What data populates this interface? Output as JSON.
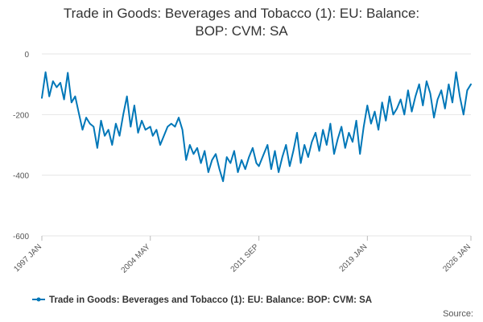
{
  "chart_data": {
    "type": "line",
    "title_line1": "Trade in Goods: Beverages and Tobacco (1): EU: Balance:",
    "title_line2": "BOP: CVM: SA",
    "xlabel": "",
    "ylabel": "",
    "ylim": [
      -600,
      0
    ],
    "y_ticks": [
      0,
      -200,
      -400,
      -600
    ],
    "y_tick_labels": [
      "0",
      "-200",
      "-400",
      "-600"
    ],
    "x_ticks": [
      {
        "label": "1997 JAN",
        "value": 1997.0
      },
      {
        "label": "2004 MAY",
        "value": 2004.33
      },
      {
        "label": "2011 SEP",
        "value": 2011.67
      },
      {
        "label": "2019 JAN",
        "value": 2019.0
      },
      {
        "label": "2026 JAN",
        "value": 2026.0
      }
    ],
    "xlim": [
      1997.0,
      2026.0
    ],
    "series": [
      {
        "name": "Trade in Goods: Beverages and Tobacco (1): EU: Balance: BOP: CVM: SA",
        "color": "#0077b8",
        "points": [
          [
            1997.0,
            -145
          ],
          [
            1997.25,
            -60
          ],
          [
            1997.5,
            -140
          ],
          [
            1997.75,
            -90
          ],
          [
            1998.0,
            -110
          ],
          [
            1998.25,
            -95
          ],
          [
            1998.5,
            -150
          ],
          [
            1998.75,
            -62
          ],
          [
            1999.0,
            -160
          ],
          [
            1999.25,
            -140
          ],
          [
            1999.5,
            -195
          ],
          [
            1999.75,
            -250
          ],
          [
            2000.0,
            -210
          ],
          [
            2000.25,
            -230
          ],
          [
            2000.5,
            -240
          ],
          [
            2000.75,
            -310
          ],
          [
            2001.0,
            -220
          ],
          [
            2001.25,
            -270
          ],
          [
            2001.5,
            -250
          ],
          [
            2001.75,
            -300
          ],
          [
            2002.0,
            -230
          ],
          [
            2002.25,
            -270
          ],
          [
            2002.5,
            -200
          ],
          [
            2002.75,
            -140
          ],
          [
            2003.0,
            -240
          ],
          [
            2003.25,
            -170
          ],
          [
            2003.5,
            -260
          ],
          [
            2003.75,
            -220
          ],
          [
            2004.0,
            -250
          ],
          [
            2004.33,
            -240
          ],
          [
            2004.5,
            -270
          ],
          [
            2004.75,
            -250
          ],
          [
            2005.0,
            -300
          ],
          [
            2005.25,
            -270
          ],
          [
            2005.5,
            -240
          ],
          [
            2005.75,
            -230
          ],
          [
            2006.0,
            -240
          ],
          [
            2006.25,
            -210
          ],
          [
            2006.5,
            -250
          ],
          [
            2006.75,
            -350
          ],
          [
            2007.0,
            -300
          ],
          [
            2007.25,
            -330
          ],
          [
            2007.5,
            -310
          ],
          [
            2007.75,
            -360
          ],
          [
            2008.0,
            -320
          ],
          [
            2008.25,
            -390
          ],
          [
            2008.5,
            -350
          ],
          [
            2008.75,
            -330
          ],
          [
            2009.0,
            -380
          ],
          [
            2009.25,
            -420
          ],
          [
            2009.5,
            -340
          ],
          [
            2009.75,
            -360
          ],
          [
            2010.0,
            -320
          ],
          [
            2010.25,
            -390
          ],
          [
            2010.5,
            -350
          ],
          [
            2010.75,
            -380
          ],
          [
            2011.0,
            -340
          ],
          [
            2011.25,
            -310
          ],
          [
            2011.5,
            -360
          ],
          [
            2011.67,
            -370
          ],
          [
            2012.0,
            -330
          ],
          [
            2012.25,
            -300
          ],
          [
            2012.5,
            -380
          ],
          [
            2012.75,
            -320
          ],
          [
            2013.0,
            -390
          ],
          [
            2013.25,
            -340
          ],
          [
            2013.5,
            -300
          ],
          [
            2013.75,
            -370
          ],
          [
            2014.0,
            -320
          ],
          [
            2014.25,
            -260
          ],
          [
            2014.5,
            -360
          ],
          [
            2014.75,
            -300
          ],
          [
            2015.0,
            -340
          ],
          [
            2015.25,
            -290
          ],
          [
            2015.5,
            -260
          ],
          [
            2015.75,
            -320
          ],
          [
            2016.0,
            -250
          ],
          [
            2016.25,
            -300
          ],
          [
            2016.5,
            -230
          ],
          [
            2016.75,
            -330
          ],
          [
            2017.0,
            -280
          ],
          [
            2017.25,
            -240
          ],
          [
            2017.5,
            -310
          ],
          [
            2017.75,
            -260
          ],
          [
            2018.0,
            -290
          ],
          [
            2018.25,
            -220
          ],
          [
            2018.5,
            -330
          ],
          [
            2018.75,
            -240
          ],
          [
            2019.0,
            -170
          ],
          [
            2019.25,
            -230
          ],
          [
            2019.5,
            -190
          ],
          [
            2019.75,
            -250
          ],
          [
            2020.0,
            -160
          ],
          [
            2020.25,
            -220
          ],
          [
            2020.5,
            -140
          ],
          [
            2020.75,
            -200
          ],
          [
            2021.0,
            -180
          ],
          [
            2021.25,
            -150
          ],
          [
            2021.5,
            -200
          ],
          [
            2021.75,
            -120
          ],
          [
            2022.0,
            -190
          ],
          [
            2022.25,
            -140
          ],
          [
            2022.5,
            -100
          ],
          [
            2022.75,
            -170
          ],
          [
            2023.0,
            -90
          ],
          [
            2023.25,
            -130
          ],
          [
            2023.5,
            -210
          ],
          [
            2023.75,
            -150
          ],
          [
            2024.0,
            -120
          ],
          [
            2024.25,
            -180
          ],
          [
            2024.5,
            -100
          ],
          [
            2024.75,
            -160
          ],
          [
            2025.0,
            -60
          ],
          [
            2025.25,
            -140
          ],
          [
            2025.5,
            -200
          ],
          [
            2025.75,
            -120
          ],
          [
            2026.0,
            -100
          ]
        ]
      }
    ],
    "legend": {
      "position": "bottom-center",
      "label": "Trade in Goods: Beverages and Tobacco (1): EU: Balance: BOP: CVM: SA"
    },
    "source_label": "Source:",
    "grid": true
  }
}
